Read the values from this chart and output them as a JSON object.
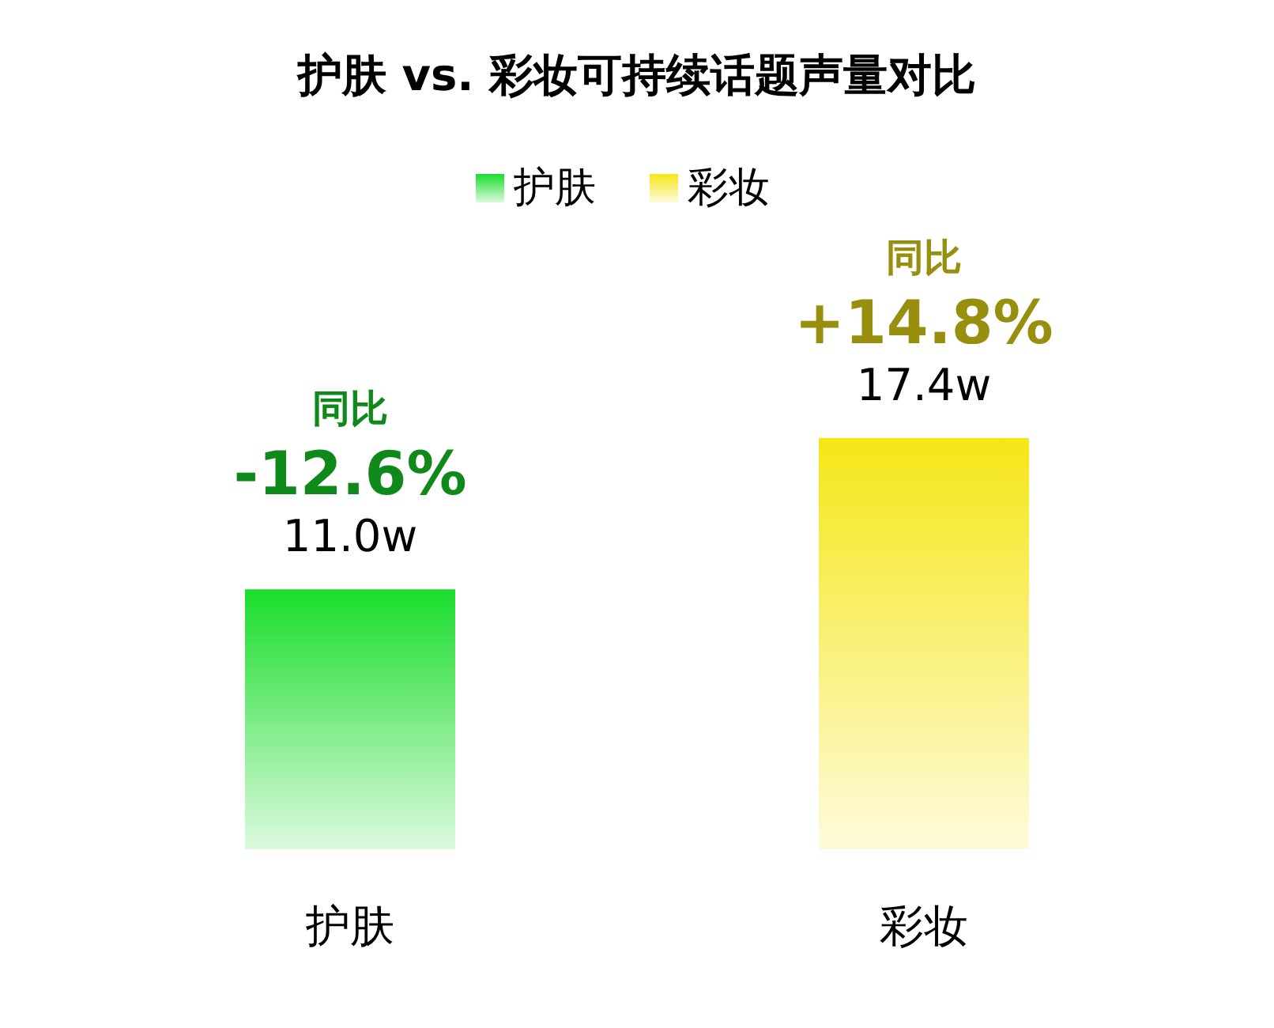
{
  "chart_data": {
    "type": "bar",
    "title": "护肤 vs. 彩妆可持续话题声量对比",
    "categories": [
      "护肤",
      "彩妆"
    ],
    "series": [
      {
        "name": "护肤",
        "color": "#19dd2b",
        "values": [
          11.0,
          null
        ],
        "value_labels": [
          "11.0w",
          null
        ]
      },
      {
        "name": "彩妆",
        "color": "#f5e616",
        "values": [
          null,
          17.4
        ],
        "value_labels": [
          null,
          "17.4w"
        ]
      }
    ],
    "annotations": [
      "同比",
      "-12.6%",
      "同比",
      "+14.8%"
    ],
    "legend": "top"
  }
}
